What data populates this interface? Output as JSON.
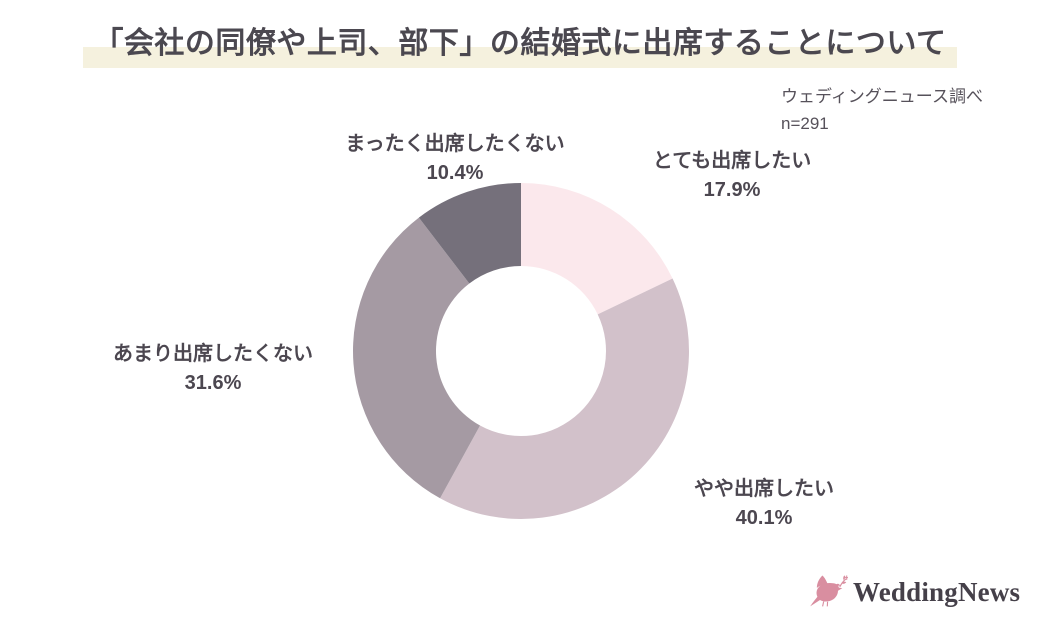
{
  "title": {
    "text": "「会社の同僚や上司、部下」の結婚式に出席することについて"
  },
  "source": {
    "line1": "ウェディングニュース調べ",
    "line2": "n=291"
  },
  "logo": {
    "text": "WeddingNews"
  },
  "colors": {
    "title_highlight": "#f5f1de",
    "title_text": "#4b4850",
    "label_text": "#4c4750",
    "source_text": "#56515a",
    "logo_text": "#454049",
    "logo_pink": "#d98ea0",
    "background": "#ffffff"
  },
  "chart_data": {
    "type": "pie",
    "subtype": "donut",
    "title": "「会社の同僚や上司、部下」の結婚式に出席することについて",
    "source_note": "ウェディングニュース調べ",
    "n": 291,
    "start_angle_deg": 0,
    "direction": "clockwise",
    "outer_radius_px": 168,
    "inner_radius_px": 85,
    "legend": "none",
    "segments": [
      {
        "label": "とても出席したい",
        "value_pct": 17.9,
        "display": "17.9%",
        "color": "#fbe8ec"
      },
      {
        "label": "やや出席したい",
        "value_pct": 40.1,
        "display": "40.1%",
        "color": "#d2c1ca"
      },
      {
        "label": "あまり出席したくない",
        "value_pct": 31.6,
        "display": "31.6%",
        "color": "#a59aa3"
      },
      {
        "label": "まったく出席したくない",
        "value_pct": 10.4,
        "display": "10.4%",
        "color": "#75707b"
      }
    ]
  }
}
